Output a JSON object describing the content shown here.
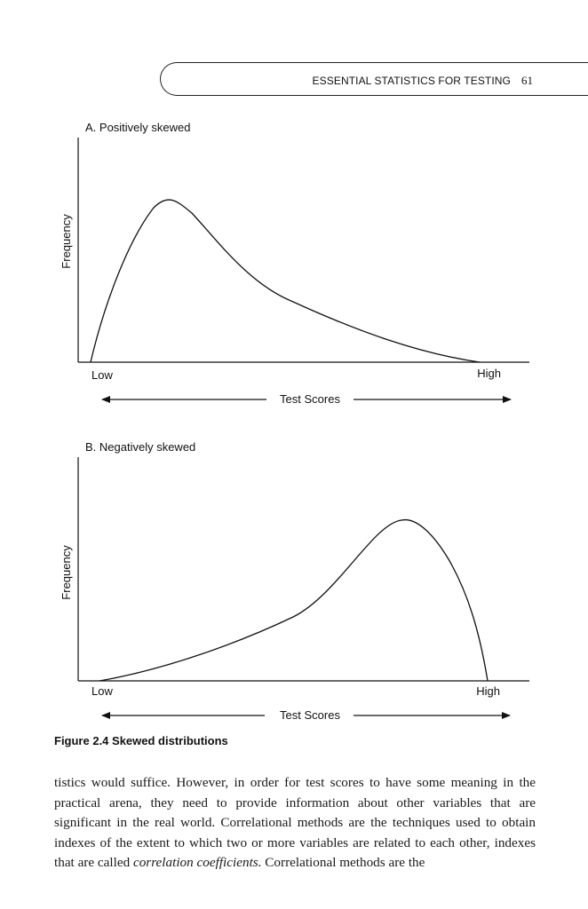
{
  "header": {
    "title": "ESSENTIAL STATISTICS FOR TESTING",
    "page_number": "61"
  },
  "figure": {
    "caption": "Figure 2.4  Skewed distributions",
    "panels": [
      {
        "title": "A. Positively skewed",
        "ylabel": "Frequency",
        "x_low": "Low",
        "x_high": "High",
        "xlabel": "Test Scores",
        "skew": "positive"
      },
      {
        "title": "B. Negatively skewed",
        "ylabel": "Frequency",
        "x_low": "Low",
        "x_high": "High",
        "xlabel": "Test Scores",
        "skew": "negative"
      }
    ]
  },
  "chart_data": [
    {
      "type": "line",
      "title": "A. Positively skewed",
      "xlabel": "Test Scores",
      "ylabel": "Frequency",
      "x_tick_labels": [
        "Low",
        "High"
      ],
      "series": [
        {
          "name": "positively skewed distribution",
          "x": [
            0,
            0.07,
            0.17,
            0.19,
            0.26,
            0.33,
            0.41,
            0.52,
            0.62,
            0.73,
            0.86,
            0.95
          ],
          "values": [
            0,
            0.47,
            0.89,
            0.9,
            0.83,
            0.59,
            0.35,
            0.23,
            0.14,
            0.07,
            0.02,
            0
          ]
        }
      ]
    },
    {
      "type": "line",
      "title": "B. Negatively skewed",
      "xlabel": "Test Scores",
      "ylabel": "Frequency",
      "x_tick_labels": [
        "Low",
        "High"
      ],
      "series": [
        {
          "name": "negatively skewed distribution",
          "x": [
            0.05,
            0.15,
            0.28,
            0.4,
            0.5,
            0.6,
            0.68,
            0.74,
            0.76,
            0.81,
            0.86,
            0.9
          ],
          "values": [
            0,
            0.04,
            0.12,
            0.21,
            0.31,
            0.51,
            0.71,
            0.8,
            0.8,
            0.7,
            0.35,
            0
          ]
        }
      ]
    }
  ],
  "body": {
    "line_1": "tistics would suffice. However, in order for test scores to have some meaning in the practical arena, they need to provide information about other variables that are significant in the real world. Correlational methods are the techniques used to obtain indexes of the extent to which two or more variables are related to each other, indexes that are called ",
    "term": "correlation coefficients.",
    "line_2": " Correlational methods are the"
  }
}
